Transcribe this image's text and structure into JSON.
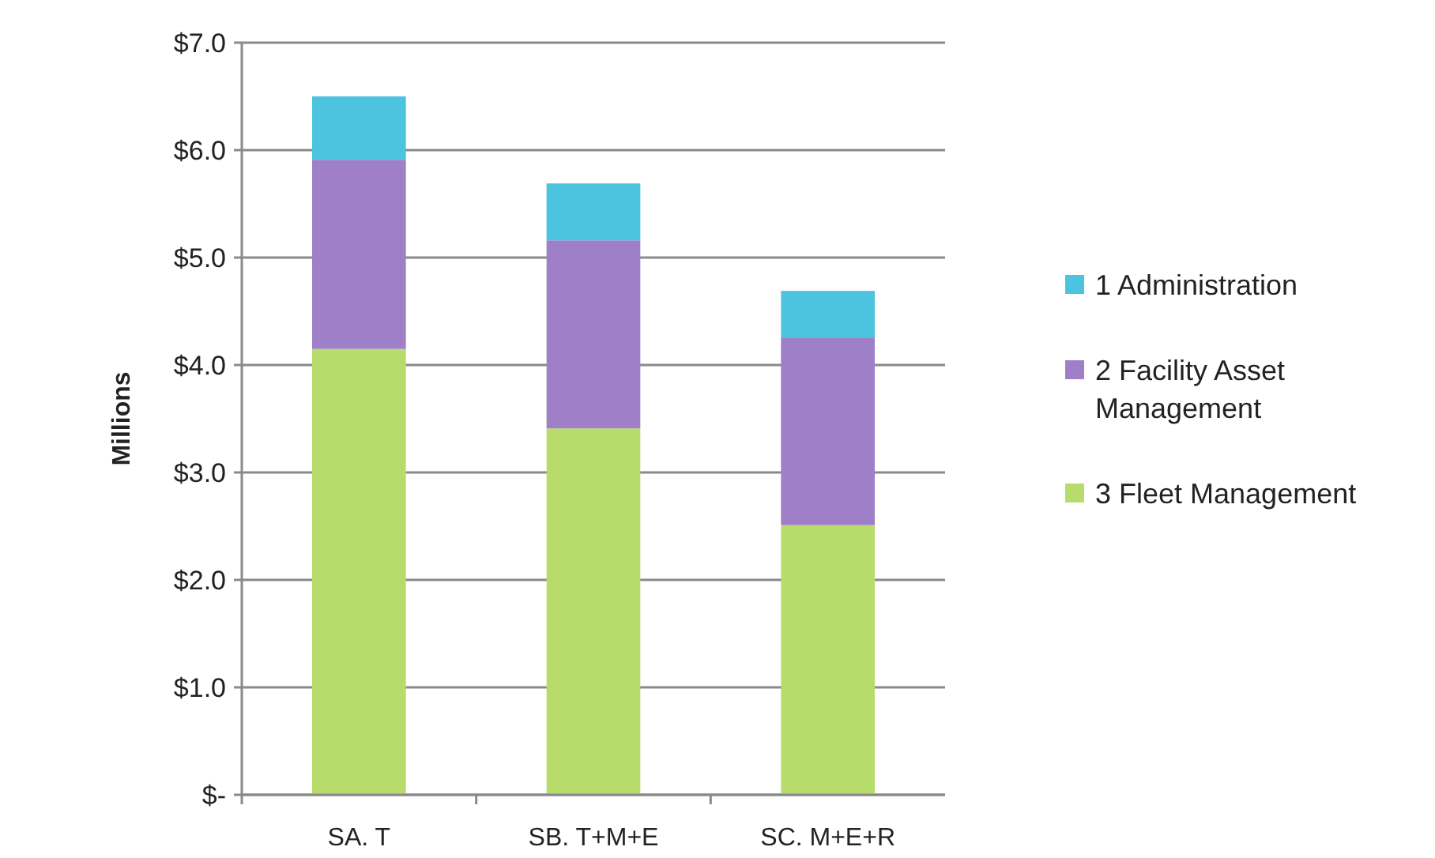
{
  "chart_data": {
    "type": "bar",
    "stacked": true,
    "ylabel": "Millions",
    "categories": [
      "SA. T",
      "SB. T+M+E",
      "SC. M+E+R"
    ],
    "series": [
      {
        "name": "3 Fleet Management",
        "color": "#b8dc6c",
        "values": [
          4.15,
          3.41,
          2.51
        ]
      },
      {
        "name": "2 Facility Asset Management",
        "color": "#9f7fc8",
        "values": [
          1.76,
          1.75,
          1.74
        ]
      },
      {
        "name": "1 Administration",
        "color": "#4cc4e0",
        "values": [
          0.59,
          0.53,
          0.44
        ]
      }
    ],
    "ylim": [
      0,
      7
    ],
    "yticks": [
      {
        "value": 0,
        "label": "$-"
      },
      {
        "value": 1,
        "label": "$1.0"
      },
      {
        "value": 2,
        "label": "$2.0"
      },
      {
        "value": 3,
        "label": "$3.0"
      },
      {
        "value": 4,
        "label": "$4.0"
      },
      {
        "value": 5,
        "label": "$5.0"
      },
      {
        "value": 6,
        "label": "$6.0"
      },
      {
        "value": 7,
        "label": "$7.0"
      }
    ],
    "grid": "y",
    "legend": "right"
  }
}
